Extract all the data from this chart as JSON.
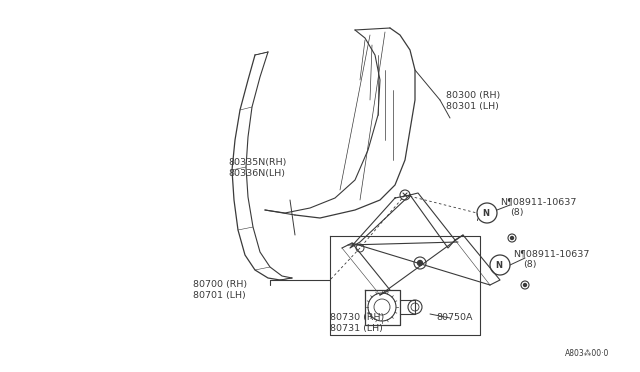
{
  "background_color": "#ffffff",
  "line_color": "#3a3a3a",
  "fig_width": 6.4,
  "fig_height": 3.72,
  "dpi": 100,
  "labels": {
    "80335N_RH": "80335N(RH)",
    "80336N_LH": "80336N(LH)",
    "80300_RH": "80300 (RH)",
    "80301_LH": "80301 (LH)",
    "bolt1_label": "N¶08911-10637",
    "bolt1_sub": "(8)",
    "bolt2_label": "N¶08911-10637",
    "bolt2_sub": "(8)",
    "80700_RH": "80700 (RH)",
    "80701_LH": "80701 (LH)",
    "80730_RH": "80730 (RH)",
    "80731_LH": "80731 (LH)",
    "80750A": "80750A",
    "footer": "A803⁂00·0"
  }
}
